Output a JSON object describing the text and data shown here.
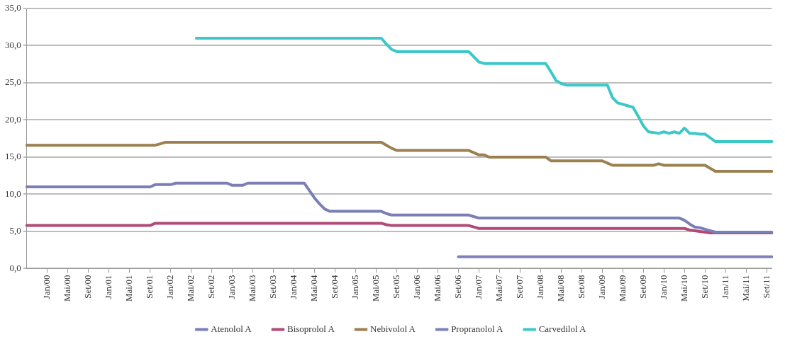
{
  "chart_data": {
    "type": "line",
    "categories": [
      null,
      null,
      null,
      null,
      "Jan/00",
      null,
      null,
      null,
      "Mai/00",
      null,
      null,
      null,
      "Set/00",
      null,
      null,
      null,
      "Jan/01",
      null,
      null,
      null,
      "Mai/01",
      null,
      null,
      null,
      "Set/01",
      null,
      null,
      null,
      "Jan/02",
      null,
      null,
      null,
      "Mai/02",
      null,
      null,
      null,
      "Set/02",
      null,
      null,
      null,
      "Jan/03",
      null,
      null,
      null,
      "Mai/03",
      null,
      null,
      null,
      "Set/03",
      null,
      null,
      null,
      "Jan/04",
      null,
      null,
      null,
      "Mai/04",
      null,
      null,
      null,
      "Set/04",
      null,
      null,
      null,
      "Jan/05",
      null,
      null,
      null,
      "Mai/05",
      null,
      null,
      null,
      "Set/05",
      null,
      null,
      null,
      "Jan/06",
      null,
      null,
      null,
      "Mai/06",
      null,
      null,
      null,
      "Set/06",
      null,
      null,
      null,
      "Jan/07",
      null,
      null,
      null,
      "Mai/07",
      null,
      null,
      null,
      "Set/07",
      null,
      null,
      null,
      "Jan/08",
      null,
      null,
      null,
      "Mai/08",
      null,
      null,
      null,
      "Set/08",
      null,
      null,
      null,
      "Jan/09",
      null,
      null,
      null,
      "Mai/09",
      null,
      null,
      null,
      "Set/09",
      null,
      null,
      null,
      "Jan/10",
      null,
      null,
      null,
      "Mai/10",
      null,
      null,
      null,
      "Set/10",
      null,
      null,
      null,
      "Jan/11",
      null,
      null,
      null,
      "Mai/11",
      null,
      null,
      null,
      "Set/11",
      null
    ],
    "ylim": [
      0,
      35
    ],
    "yticks": [
      {
        "value": 0,
        "label": "0,0"
      },
      {
        "value": 5,
        "label": "5,0"
      },
      {
        "value": 10,
        "label": "10,0"
      },
      {
        "value": 15,
        "label": "15,0"
      },
      {
        "value": 20,
        "label": "20,0"
      },
      {
        "value": 25,
        "label": "25,0"
      },
      {
        "value": 30,
        "label": "30,0"
      },
      {
        "value": 35,
        "label": "35,0"
      }
    ],
    "grid": "y",
    "legend": "bottom",
    "marker": "none",
    "line_style": "solid",
    "series": [
      {
        "name": "Atenolol A",
        "color": "#7b7fb5",
        "values": [
          11.0,
          11.0,
          11.0,
          11.0,
          11.0,
          11.0,
          11.0,
          11.0,
          11.0,
          11.0,
          11.0,
          11.0,
          11.0,
          11.0,
          11.0,
          11.0,
          11.0,
          11.0,
          11.0,
          11.0,
          11.0,
          11.0,
          11.0,
          11.0,
          11.0,
          11.3,
          11.3,
          11.3,
          11.3,
          11.5,
          11.5,
          11.5,
          11.5,
          11.5,
          11.5,
          11.5,
          11.5,
          11.5,
          11.5,
          11.5,
          11.2,
          11.2,
          11.2,
          11.5,
          11.5,
          11.5,
          11.5,
          11.5,
          11.5,
          11.5,
          11.5,
          11.5,
          11.5,
          11.5,
          11.5,
          10.5,
          9.5,
          8.7,
          8.0,
          7.7,
          7.7,
          7.7,
          7.7,
          7.7,
          7.7,
          7.7,
          7.7,
          7.7,
          7.7,
          7.7,
          7.4,
          7.2,
          7.2,
          7.2,
          7.2,
          7.2,
          7.2,
          7.2,
          7.2,
          7.2,
          7.2,
          7.2,
          7.2,
          7.2,
          7.2,
          7.2,
          7.2,
          7.0,
          6.8,
          6.8,
          6.8,
          6.8,
          6.8,
          6.8,
          6.8,
          6.8,
          6.8,
          6.8,
          6.8,
          6.8,
          6.8,
          6.8,
          6.8,
          6.8,
          6.8,
          6.8,
          6.8,
          6.8,
          6.8,
          6.8,
          6.8,
          6.8,
          6.8,
          6.8,
          6.8,
          6.8,
          6.8,
          6.8,
          6.8,
          6.8,
          6.8,
          6.8,
          6.8,
          6.8,
          6.8,
          6.8,
          6.8,
          6.8,
          6.5,
          6.0,
          5.6,
          5.5,
          5.3,
          5.1,
          4.9,
          4.9,
          4.9,
          4.9,
          4.9,
          4.9,
          4.9,
          4.9,
          4.9,
          4.9,
          4.9,
          4.9
        ]
      },
      {
        "name": "Bisoprolol A",
        "color": "#b04a77",
        "values": [
          5.8,
          5.8,
          5.8,
          5.8,
          5.8,
          5.8,
          5.8,
          5.8,
          5.8,
          5.8,
          5.8,
          5.8,
          5.8,
          5.8,
          5.8,
          5.8,
          5.8,
          5.8,
          5.8,
          5.8,
          5.8,
          5.8,
          5.8,
          5.8,
          5.8,
          6.1,
          6.1,
          6.1,
          6.1,
          6.1,
          6.1,
          6.1,
          6.1,
          6.1,
          6.1,
          6.1,
          6.1,
          6.1,
          6.1,
          6.1,
          6.1,
          6.1,
          6.1,
          6.1,
          6.1,
          6.1,
          6.1,
          6.1,
          6.1,
          6.1,
          6.1,
          6.1,
          6.1,
          6.1,
          6.1,
          6.1,
          6.1,
          6.1,
          6.1,
          6.1,
          6.1,
          6.1,
          6.1,
          6.1,
          6.1,
          6.1,
          6.1,
          6.1,
          6.1,
          6.1,
          5.9,
          5.8,
          5.8,
          5.8,
          5.8,
          5.8,
          5.8,
          5.8,
          5.8,
          5.8,
          5.8,
          5.8,
          5.8,
          5.8,
          5.8,
          5.8,
          5.8,
          5.6,
          5.4,
          5.4,
          5.4,
          5.4,
          5.4,
          5.4,
          5.4,
          5.4,
          5.4,
          5.4,
          5.4,
          5.4,
          5.4,
          5.4,
          5.4,
          5.4,
          5.4,
          5.4,
          5.4,
          5.4,
          5.4,
          5.4,
          5.4,
          5.4,
          5.4,
          5.4,
          5.4,
          5.4,
          5.4,
          5.4,
          5.4,
          5.4,
          5.4,
          5.4,
          5.4,
          5.4,
          5.4,
          5.4,
          5.4,
          5.4,
          5.4,
          5.2,
          5.1,
          5.0,
          4.9,
          4.8,
          4.8,
          4.8,
          4.8,
          4.8,
          4.8,
          4.8,
          4.8,
          4.8,
          4.8,
          4.8,
          4.8,
          4.8
        ]
      },
      {
        "name": "Nebivolol A",
        "color": "#9c8050",
        "values": [
          16.6,
          16.6,
          16.6,
          16.6,
          16.6,
          16.6,
          16.6,
          16.6,
          16.6,
          16.6,
          16.6,
          16.6,
          16.6,
          16.6,
          16.6,
          16.6,
          16.6,
          16.6,
          16.6,
          16.6,
          16.6,
          16.6,
          16.6,
          16.6,
          16.6,
          16.6,
          16.8,
          17.0,
          17.0,
          17.0,
          17.0,
          17.0,
          17.0,
          17.0,
          17.0,
          17.0,
          17.0,
          17.0,
          17.0,
          17.0,
          17.0,
          17.0,
          17.0,
          17.0,
          17.0,
          17.0,
          17.0,
          17.0,
          17.0,
          17.0,
          17.0,
          17.0,
          17.0,
          17.0,
          17.0,
          17.0,
          17.0,
          17.0,
          17.0,
          17.0,
          17.0,
          17.0,
          17.0,
          17.0,
          17.0,
          17.0,
          17.0,
          17.0,
          17.0,
          17.0,
          16.6,
          16.2,
          15.9,
          15.9,
          15.9,
          15.9,
          15.9,
          15.9,
          15.9,
          15.9,
          15.9,
          15.9,
          15.9,
          15.9,
          15.9,
          15.9,
          15.9,
          15.6,
          15.3,
          15.3,
          15.0,
          15.0,
          15.0,
          15.0,
          15.0,
          15.0,
          15.0,
          15.0,
          15.0,
          15.0,
          15.0,
          15.0,
          14.5,
          14.5,
          14.5,
          14.5,
          14.5,
          14.5,
          14.5,
          14.5,
          14.5,
          14.5,
          14.5,
          14.2,
          13.9,
          13.9,
          13.9,
          13.9,
          13.9,
          13.9,
          13.9,
          13.9,
          13.9,
          14.1,
          13.9,
          13.9,
          13.9,
          13.9,
          13.9,
          13.9,
          13.9,
          13.9,
          13.9,
          13.5,
          13.1,
          13.1,
          13.1,
          13.1,
          13.1,
          13.1,
          13.1,
          13.1,
          13.1,
          13.1,
          13.1,
          13.1
        ]
      },
      {
        "name": "Propranolol A",
        "color": "#7f82b8",
        "values": [
          null,
          null,
          null,
          null,
          null,
          null,
          null,
          null,
          null,
          null,
          null,
          null,
          null,
          null,
          null,
          null,
          null,
          null,
          null,
          null,
          null,
          null,
          null,
          null,
          null,
          null,
          null,
          null,
          null,
          null,
          null,
          null,
          null,
          null,
          null,
          null,
          null,
          null,
          null,
          null,
          null,
          null,
          null,
          null,
          null,
          null,
          null,
          null,
          null,
          null,
          null,
          null,
          null,
          null,
          null,
          null,
          null,
          null,
          null,
          null,
          null,
          null,
          null,
          null,
          null,
          null,
          null,
          null,
          null,
          null,
          null,
          null,
          null,
          null,
          null,
          null,
          null,
          null,
          null,
          null,
          null,
          null,
          null,
          null,
          1.6,
          1.6,
          1.6,
          1.6,
          1.6,
          1.6,
          1.6,
          1.6,
          1.6,
          1.6,
          1.6,
          1.6,
          1.6,
          1.6,
          1.6,
          1.6,
          1.6,
          1.6,
          1.6,
          1.6,
          1.6,
          1.6,
          1.6,
          1.6,
          1.6,
          1.6,
          1.6,
          1.6,
          1.6,
          1.6,
          1.6,
          1.6,
          1.6,
          1.6,
          1.6,
          1.6,
          1.6,
          1.6,
          1.6,
          1.6,
          1.6,
          1.6,
          1.6,
          1.6,
          1.6,
          1.6,
          1.6,
          1.6,
          1.6,
          1.6,
          1.6,
          1.6,
          1.6,
          1.6,
          1.6,
          1.6,
          1.6,
          1.6,
          1.6,
          1.6,
          1.6,
          1.6
        ]
      },
      {
        "name": "Carvedilol A",
        "color": "#3cc8c8",
        "values": [
          null,
          null,
          null,
          null,
          null,
          null,
          null,
          null,
          null,
          null,
          null,
          null,
          null,
          null,
          null,
          null,
          null,
          null,
          null,
          null,
          null,
          null,
          null,
          null,
          null,
          null,
          null,
          null,
          null,
          null,
          null,
          null,
          null,
          31.0,
          31.0,
          31.0,
          31.0,
          31.0,
          31.0,
          31.0,
          31.0,
          31.0,
          31.0,
          31.0,
          31.0,
          31.0,
          31.0,
          31.0,
          31.0,
          31.0,
          31.0,
          31.0,
          31.0,
          31.0,
          31.0,
          31.0,
          31.0,
          31.0,
          31.0,
          31.0,
          31.0,
          31.0,
          31.0,
          31.0,
          31.0,
          31.0,
          31.0,
          31.0,
          31.0,
          31.0,
          30.2,
          29.5,
          29.2,
          29.2,
          29.2,
          29.2,
          29.2,
          29.2,
          29.2,
          29.2,
          29.2,
          29.2,
          29.2,
          29.2,
          29.2,
          29.2,
          29.2,
          28.5,
          27.8,
          27.6,
          27.6,
          27.6,
          27.6,
          27.6,
          27.6,
          27.6,
          27.6,
          27.6,
          27.6,
          27.6,
          27.6,
          27.6,
          26.5,
          25.3,
          24.9,
          24.7,
          24.7,
          24.7,
          24.7,
          24.7,
          24.7,
          24.7,
          24.7,
          24.7,
          23.0,
          22.3,
          22.1,
          21.9,
          21.7,
          20.5,
          19.2,
          18.4,
          18.3,
          18.2,
          18.4,
          18.2,
          18.4,
          18.2,
          18.9,
          18.2,
          18.2,
          18.1,
          18.1,
          17.6,
          17.1,
          17.1,
          17.1,
          17.1,
          17.1,
          17.1,
          17.1,
          17.1,
          17.1,
          17.1,
          17.1,
          17.1
        ]
      }
    ]
  }
}
